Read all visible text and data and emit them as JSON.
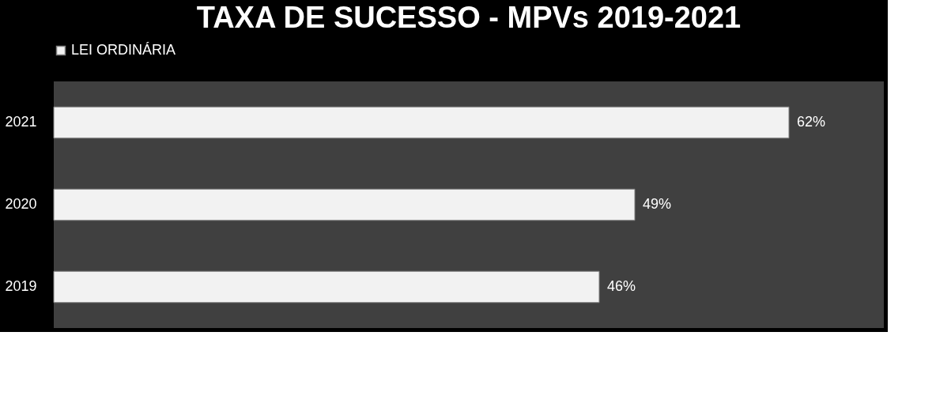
{
  "chart_data": {
    "type": "bar",
    "orientation": "horizontal",
    "title": "TAXA DE SUCESSO - MPVs 2019-2021",
    "categories": [
      "2021",
      "2020",
      "2019"
    ],
    "series": [
      {
        "name": "LEI ORDINÁRIA",
        "color": "#f2f2f2",
        "values": [
          62,
          49,
          46
        ],
        "value_labels": [
          "62%",
          "49%",
          "46%"
        ]
      }
    ],
    "xlim": [
      0,
      70
    ],
    "tick_labels": "y",
    "grid": false,
    "legend": "top"
  }
}
